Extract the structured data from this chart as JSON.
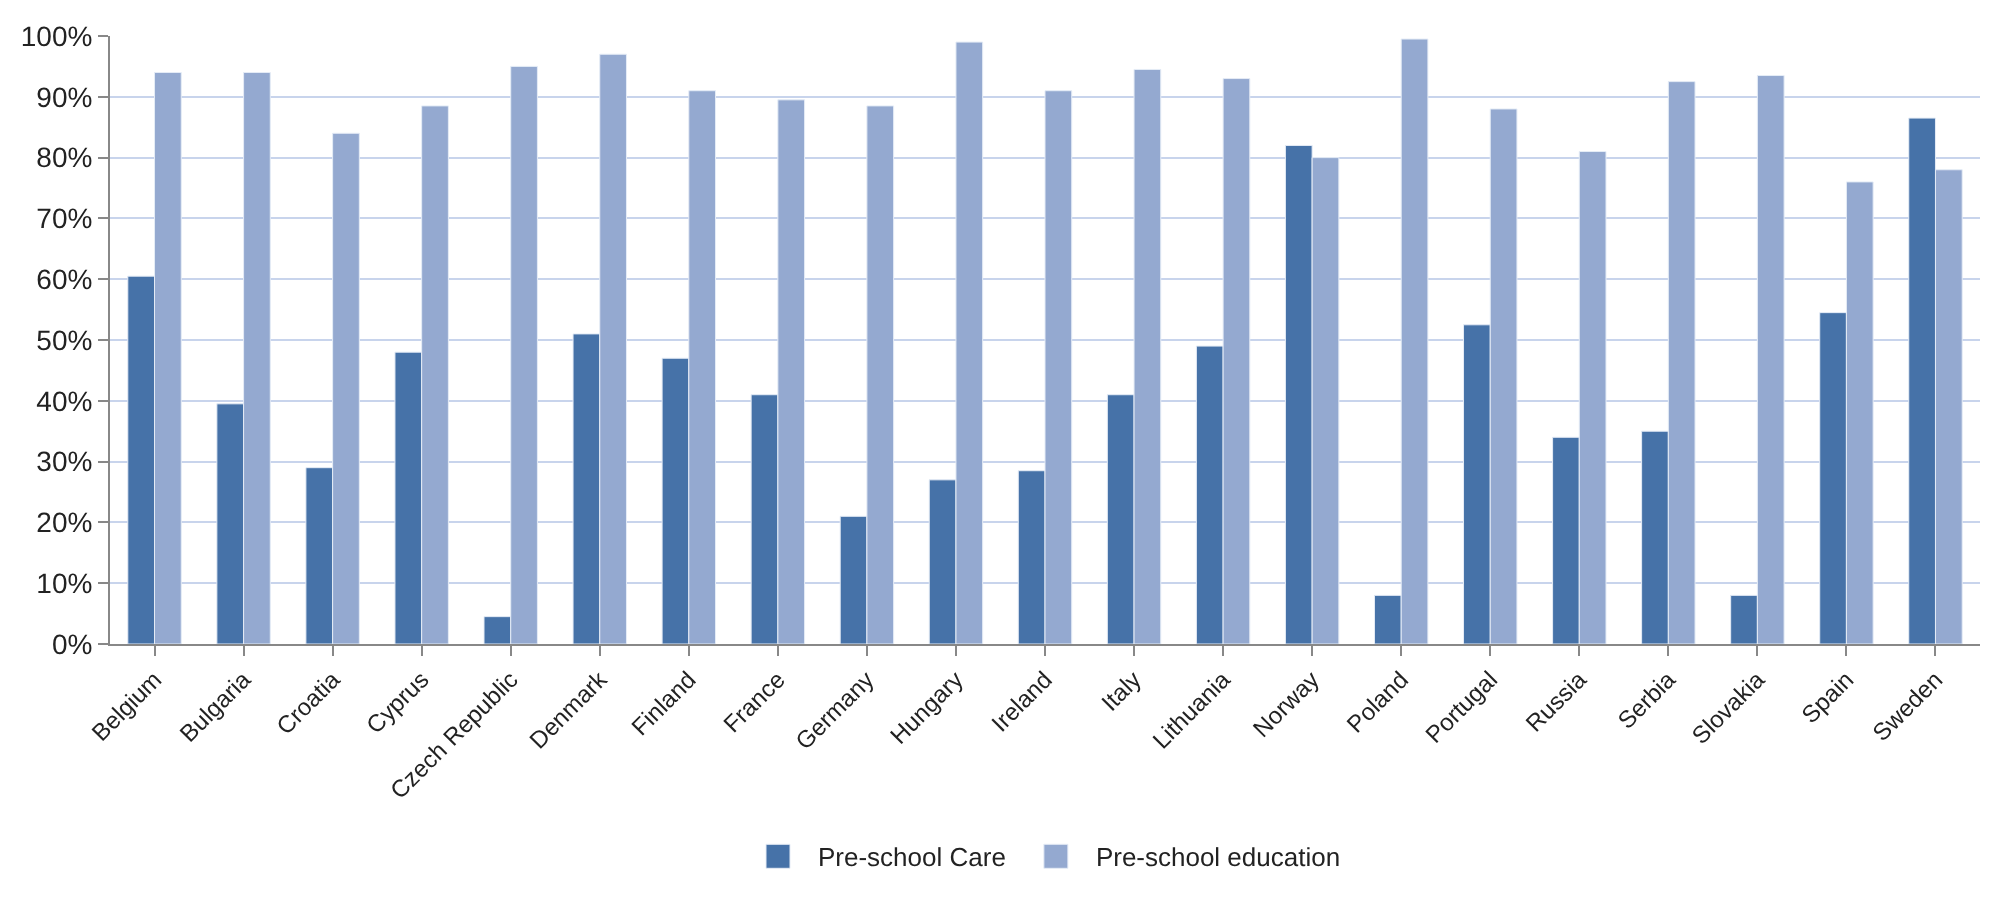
{
  "chart_data": {
    "type": "bar",
    "categories": [
      "Belgium",
      "Bulgaria",
      "Croatia",
      "Cyprus",
      "Czech Republic",
      "Denmark",
      "Finland",
      "France",
      "Germany",
      "Hungary",
      "Ireland",
      "Italy",
      "Lithuania",
      "Norway",
      "Poland",
      "Portugal",
      "Russia",
      "Serbia",
      "Slovakia",
      "Spain",
      "Sweden"
    ],
    "series": [
      {
        "name": "Pre-school Care",
        "color": "#4672a8",
        "values": [
          60.5,
          39.5,
          29,
          48,
          4.5,
          51,
          47,
          41,
          21,
          27,
          28.5,
          41,
          49,
          82,
          8,
          52.5,
          34,
          35,
          8,
          54.5,
          86.5
        ]
      },
      {
        "name": "Pre-school education",
        "color": "#94a9d0",
        "values": [
          94,
          94,
          84,
          88.5,
          95,
          97,
          91,
          89.5,
          88.5,
          99,
          91,
          94.5,
          93,
          80,
          99.5,
          88,
          81,
          92.5,
          93.5,
          76,
          78
        ]
      }
    ],
    "ylim": [
      0,
      100
    ],
    "yticks": [
      {
        "value": 0,
        "label": "0%"
      },
      {
        "value": 10,
        "label": "10%"
      },
      {
        "value": 20,
        "label": "20%"
      },
      {
        "value": 30,
        "label": "30%"
      },
      {
        "value": 40,
        "label": "40%"
      },
      {
        "value": 50,
        "label": "50%"
      },
      {
        "value": 60,
        "label": "60%"
      },
      {
        "value": 70,
        "label": "70%"
      },
      {
        "value": 80,
        "label": "80%"
      },
      {
        "value": 90,
        "label": "90%"
      },
      {
        "value": 100,
        "label": "100%"
      }
    ],
    "grid": "y",
    "legend": "bottom"
  }
}
